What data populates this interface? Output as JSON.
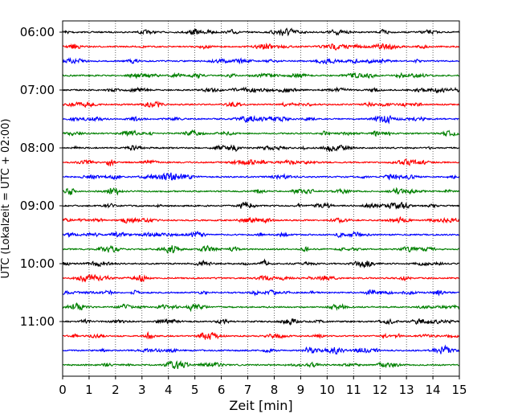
{
  "chart_data": {
    "type": "line",
    "title": "",
    "xlabel": "Zeit  [min]",
    "ylabel": "UTC (Lokalzeit = UTC + 02:00)",
    "xlim": [
      0,
      15
    ],
    "x_ticks": [
      0,
      1,
      2,
      3,
      4,
      5,
      6,
      7,
      8,
      9,
      10,
      11,
      12,
      13,
      14,
      15
    ],
    "grid": "vertical-dotted",
    "legend": "none",
    "time_ticks": [
      "06:00",
      "07:00",
      "08:00",
      "09:00",
      "10:00",
      "11:00"
    ],
    "trace_interval_minutes": 15,
    "trace_count": 24,
    "series_colors": [
      "#000000",
      "#ff0000",
      "#0000ff",
      "#008000"
    ]
  }
}
